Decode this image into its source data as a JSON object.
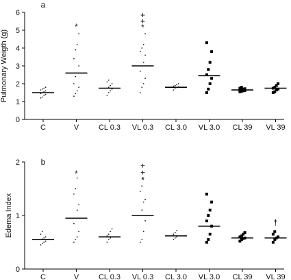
{
  "chart_data": [
    {
      "type": "scatter",
      "panel_label": "a",
      "ylabel": "Pulmonary Weigth (g)",
      "xlabel": "",
      "ylim": [
        0,
        6
      ],
      "yticks": [
        0,
        1,
        2,
        3,
        4,
        5,
        6
      ],
      "categories": [
        "C",
        "V",
        "CL 0.3",
        "VL 0.3",
        "CL 3.0",
        "VL 3.0",
        "CL 39",
        "VL 39"
      ],
      "marker_styles": [
        "small",
        "small",
        "small",
        "small",
        "small",
        "square",
        "square",
        "square"
      ],
      "medians": [
        1.5,
        2.6,
        1.75,
        3.0,
        1.8,
        2.45,
        1.65,
        1.75
      ],
      "points": [
        [
          1.2,
          1.25,
          1.35,
          1.4,
          1.45,
          1.5,
          1.55,
          1.6,
          1.65,
          1.7,
          1.75,
          1.8
        ],
        [
          1.3,
          1.45,
          1.6,
          1.8,
          2.0,
          2.4,
          2.6,
          3.0,
          3.4,
          3.9,
          4.2,
          4.8
        ],
        [
          1.35,
          1.5,
          1.6,
          1.7,
          1.75,
          1.8,
          1.9,
          2.0,
          2.1,
          2.2
        ],
        [
          1.5,
          1.8,
          2.0,
          2.3,
          2.7,
          3.0,
          3.2,
          3.6,
          3.8,
          4.0,
          4.2,
          4.8
        ],
        [
          1.65,
          1.72,
          1.78,
          1.82,
          1.86,
          1.9,
          1.95,
          2.0
        ],
        [
          1.5,
          1.7,
          2.0,
          2.3,
          2.5,
          2.8,
          3.2,
          3.8,
          4.3
        ],
        [
          1.55,
          1.58,
          1.6,
          1.62,
          1.65,
          1.68,
          1.7,
          1.72,
          1.75,
          1.8
        ],
        [
          1.5,
          1.55,
          1.65,
          1.7,
          1.75,
          1.8,
          1.9,
          2.0
        ]
      ],
      "annotations": [
        {
          "category": "V",
          "text": "*",
          "y": 5.2
        },
        {
          "category": "VL 0.3",
          "text": "+",
          "y": 5.85
        },
        {
          "category": "VL 0.3",
          "text": "+",
          "y": 5.5
        },
        {
          "category": "VL 0.3",
          "text": "*",
          "y": 5.15
        }
      ],
      "grid": false,
      "legend": "none"
    },
    {
      "type": "scatter",
      "panel_label": "b",
      "ylabel": "Edema Index",
      "xlabel": "",
      "ylim": [
        0,
        2
      ],
      "yticks": [
        0,
        1,
        2
      ],
      "categories": [
        "C",
        "V",
        "CL 0.3",
        "VL 0.3",
        "CL 3.0",
        "VL 3.0",
        "CL 39",
        "VL 39"
      ],
      "marker_styles": [
        "small",
        "small",
        "small",
        "small",
        "small",
        "square",
        "square",
        "square"
      ],
      "medians": [
        0.55,
        0.95,
        0.6,
        1.0,
        0.62,
        0.8,
        0.58,
        0.58
      ],
      "points": [
        [
          0.45,
          0.48,
          0.5,
          0.52,
          0.55,
          0.56,
          0.58,
          0.6,
          0.65,
          0.7
        ],
        [
          0.5,
          0.55,
          0.6,
          0.7,
          0.85,
          0.95,
          1.1,
          1.2,
          1.4,
          1.5,
          1.7
        ],
        [
          0.5,
          0.55,
          0.58,
          0.6,
          0.62,
          0.65,
          0.7,
          0.75
        ],
        [
          0.5,
          0.55,
          0.7,
          0.9,
          1.0,
          1.1,
          1.25,
          1.3,
          1.45,
          1.55,
          1.7
        ],
        [
          0.55,
          0.58,
          0.6,
          0.62,
          0.65,
          0.68,
          0.72
        ],
        [
          0.5,
          0.55,
          0.65,
          0.8,
          0.9,
          1.0,
          1.1,
          1.25,
          1.4
        ],
        [
          0.52,
          0.55,
          0.57,
          0.58,
          0.6,
          0.62,
          0.65,
          0.68
        ],
        [
          0.5,
          0.55,
          0.58,
          0.6,
          0.65,
          0.7
        ]
      ],
      "annotations": [
        {
          "category": "V",
          "text": "*",
          "y": 1.78
        },
        {
          "category": "VL 0.3",
          "text": "+",
          "y": 1.93
        },
        {
          "category": "VL 0.3",
          "text": "+",
          "y": 1.8
        },
        {
          "category": "VL 0.3",
          "text": "*",
          "y": 1.66
        },
        {
          "category": "VL 39",
          "text": "†",
          "y": 0.87
        }
      ],
      "grid": false,
      "legend": "none"
    }
  ]
}
